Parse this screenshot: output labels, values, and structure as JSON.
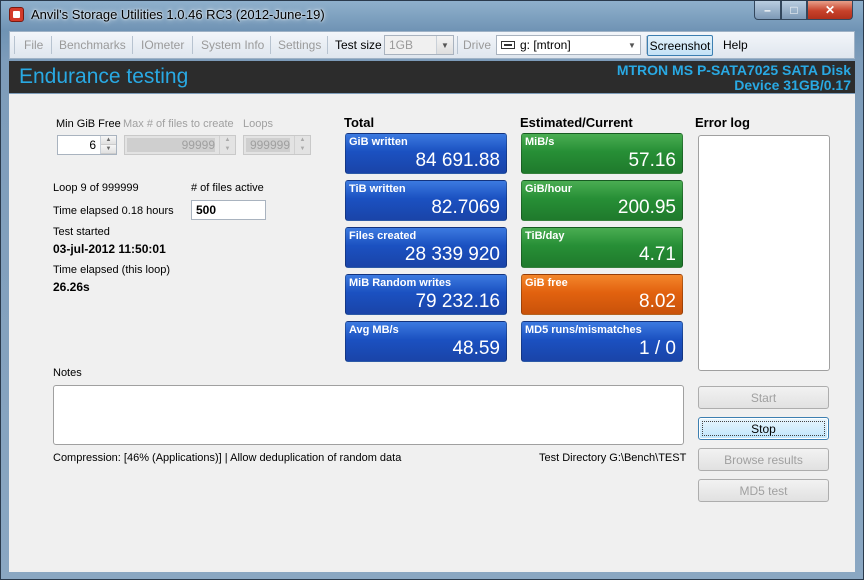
{
  "window": {
    "title": "Anvil's Storage Utilities 1.0.46 RC3 (2012-June-19)",
    "minimize": "–",
    "maximize": "□",
    "close": "✕"
  },
  "menu": {
    "file": "File",
    "benchmarks": "Benchmarks",
    "iometer": "IOmeter",
    "system_info": "System Info",
    "settings": "Settings",
    "test_size_label": "Test size",
    "test_size_value": "1GB",
    "drive_label": "Drive",
    "drive_value": "g: [mtron]",
    "screenshot": "Screenshot",
    "help": "Help"
  },
  "header": {
    "title": "Endurance testing",
    "device_line1": "MTRON MS P-SATA7025 SATA Disk",
    "device_line2": "Device 31GB/0.17"
  },
  "params": {
    "min_free_label": "Min GiB Free",
    "min_free_value": "6",
    "max_files_label": "Max # of files to create",
    "max_files_value": "99999",
    "loops_label": "Loops",
    "loops_value": "999999"
  },
  "status": {
    "loop": "Loop 9 of 999999",
    "files_active_label": "# of files active",
    "files_active_value": "500",
    "time_elapsed": "Time elapsed 0.18 hours",
    "test_started_label": "Test started",
    "test_started_value": "03-jul-2012 11:50:01",
    "time_loop_label": "Time elapsed (this loop)",
    "time_loop_value": "26.26s"
  },
  "total": {
    "heading": "Total",
    "tiles": [
      {
        "title": "GiB written",
        "value": "84 691.88"
      },
      {
        "title": "TiB written",
        "value": "82.7069"
      },
      {
        "title": "Files created",
        "value": "28 339 920"
      },
      {
        "title": "MiB Random writes",
        "value": "79 232.16"
      },
      {
        "title": "Avg MB/s",
        "value": "48.59"
      }
    ]
  },
  "estimated": {
    "heading": "Estimated/Current",
    "tiles": [
      {
        "title": "MiB/s",
        "value": "57.16"
      },
      {
        "title": "GiB/hour",
        "value": "200.95"
      },
      {
        "title": "TiB/day",
        "value": "4.71"
      },
      {
        "title": "GiB free",
        "value": "8.02"
      },
      {
        "title": "MD5 runs/mismatches",
        "value": "1 / 0"
      }
    ]
  },
  "error_log": {
    "heading": "Error log"
  },
  "notes": {
    "label": "Notes"
  },
  "footer": {
    "compression": "Compression: [46% (Applications)] | Allow deduplication of random data",
    "test_dir": "Test Directory G:\\Bench\\TEST"
  },
  "buttons": {
    "start": "Start",
    "stop": "Stop",
    "browse": "Browse results",
    "md5": "MD5 test"
  },
  "colors": {
    "accent": "#29a9e3",
    "tile_blue": "#1b51c1",
    "tile_green": "#278f36",
    "tile_orange": "#e2620f"
  }
}
